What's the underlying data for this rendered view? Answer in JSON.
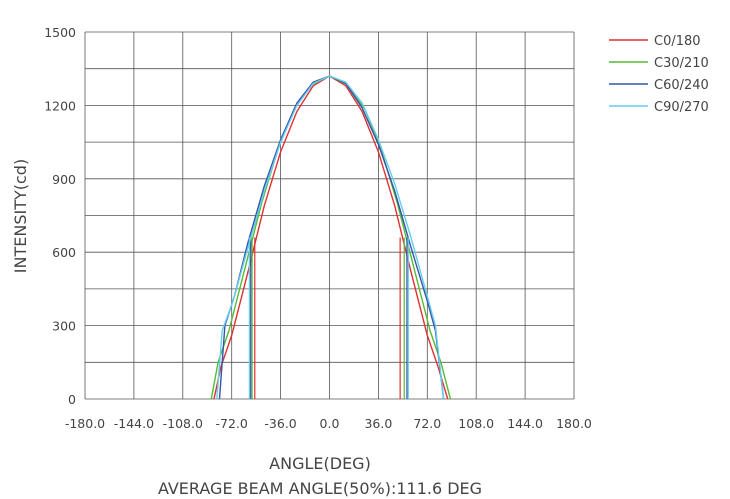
{
  "chart_data": {
    "type": "line",
    "title": "",
    "xlabel": "ANGLE(DEG)",
    "ylabel": "INTENSITY(cd)",
    "subtitle": "AVERAGE BEAM ANGLE(50%):111.6 DEG",
    "xlim": [
      -180,
      180
    ],
    "ylim": [
      0,
      1500
    ],
    "grid": true,
    "legend_position": "top-right",
    "x_tick_labels": [
      "-180.0",
      "-144.0",
      "-108.0",
      "-72.0",
      "-36.0",
      "0.0",
      "36.0",
      "72.0",
      "108.0",
      "144.0",
      "180.0"
    ],
    "y_tick_labels": [
      "0",
      "300",
      "600",
      "900",
      "1200",
      "1500"
    ],
    "series": [
      {
        "name": "C0/180",
        "color": "#e03030",
        "x": [
          -85,
          -80,
          -72,
          -60,
          -48,
          -36,
          -24,
          -12,
          0,
          12,
          24,
          36,
          48,
          60,
          72,
          80,
          87
        ],
        "y": [
          0,
          130,
          260,
          520,
          790,
          1010,
          1175,
          1280,
          1320,
          1280,
          1175,
          1010,
          790,
          520,
          260,
          130,
          0
        ],
        "beam_edges": [
          -55,
          52
        ]
      },
      {
        "name": "C30/210",
        "color": "#55bb33",
        "x": [
          -87,
          -82,
          -74,
          -62,
          -50,
          -38,
          -26,
          -13,
          0,
          13,
          26,
          38,
          50,
          62,
          74,
          82,
          89
        ],
        "y": [
          0,
          150,
          280,
          540,
          800,
          1020,
          1185,
          1285,
          1320,
          1285,
          1185,
          1020,
          800,
          540,
          280,
          150,
          0
        ],
        "beam_edges": [
          -57,
          55
        ]
      },
      {
        "name": "C60/240",
        "color": "#3355aa",
        "x": [
          -81,
          -77,
          -70,
          -60,
          -48,
          -36,
          -24,
          -12,
          0,
          12,
          24,
          36,
          48,
          60,
          72,
          78,
          84
        ],
        "y": [
          0,
          300,
          420,
          640,
          870,
          1060,
          1210,
          1295,
          1320,
          1290,
          1190,
          1040,
          850,
          620,
          400,
          280,
          0
        ],
        "beam_edges": [
          -58,
          57
        ]
      },
      {
        "name": "C90/270",
        "color": "#66ccee",
        "x": [
          -83,
          -79,
          -71,
          -60,
          -48,
          -36,
          -24,
          -12,
          0,
          12,
          24,
          36,
          48,
          60,
          72,
          78,
          84
        ],
        "y": [
          0,
          280,
          400,
          620,
          850,
          1050,
          1200,
          1290,
          1320,
          1295,
          1210,
          1060,
          880,
          660,
          420,
          300,
          0
        ],
        "beam_edges": [
          -59,
          58
        ]
      }
    ]
  }
}
